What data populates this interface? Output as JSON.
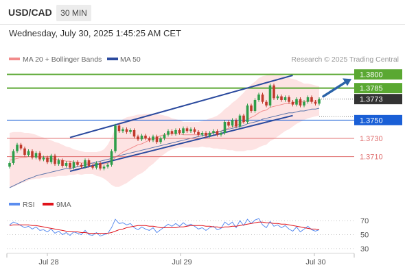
{
  "header": {
    "symbol": "USD/CAD",
    "timeframe": "30 MIN",
    "datetime": "Wednesday, July 30, 2025 1:45:25 AM CET"
  },
  "legend": {
    "ma20": "MA 20 + Bollinger Bands",
    "ma50": "MA 50",
    "credit": "Research © 2025 Trading Central",
    "rsi": "RSI",
    "rsi_ma": "9MA"
  },
  "colors": {
    "resistance": "#5aa832",
    "pivot": "#1a5fd6",
    "support": "#e07070",
    "trendline": "#2b4a9e",
    "arrow": "#2b63a8",
    "bollinger_fill": "#fde3e3",
    "ma20": "#f28b8b",
    "ma50": "#5470a8",
    "candle_up": "#2e9e4a",
    "candle_down": "#c0392b",
    "rsi": "#5b8def",
    "rsi_ma": "#e0131b",
    "last_price_bg": "#333333"
  },
  "chart_data": [
    {
      "type": "candlestick",
      "ylim": [
        1.3664,
        1.3808
      ],
      "x_labels": [
        "Jul 28",
        "Jul 29",
        "Jul 30"
      ],
      "levels": [
        {
          "label": "1.3800",
          "value": 1.38,
          "kind": "resistance"
        },
        {
          "label": "1.3785",
          "value": 1.3785,
          "kind": "resistance"
        },
        {
          "label": "1.3773",
          "value": 1.3773,
          "kind": "last"
        },
        {
          "label": "1.3750",
          "value": 1.375,
          "kind": "pivot"
        },
        {
          "label": "1.3730",
          "value": 1.373,
          "kind": "support"
        },
        {
          "label": "1.3710",
          "value": 1.371,
          "kind": "support"
        }
      ],
      "channel": {
        "upper": [
          {
            "bar": 16,
            "price": 1.3731
          },
          {
            "bar": 75,
            "price": 1.3799
          }
        ],
        "lower": [
          {
            "bar": 16,
            "price": 1.3694
          },
          {
            "bar": 75,
            "price": 1.3755
          }
        ]
      },
      "closes": [
        1.3703,
        1.3716,
        1.3723,
        1.3719,
        1.3712,
        1.3716,
        1.3709,
        1.3714,
        1.3707,
        1.3709,
        1.3704,
        1.3711,
        1.3702,
        1.3706,
        1.37,
        1.3703,
        1.3698,
        1.3704,
        1.3701,
        1.3699,
        1.3706,
        1.37,
        1.3698,
        1.3703,
        1.3697,
        1.3699,
        1.3701,
        1.3716,
        1.3744,
        1.3738,
        1.374,
        1.3737,
        1.3739,
        1.3732,
        1.3729,
        1.3733,
        1.373,
        1.3728,
        1.3732,
        1.3726,
        1.373,
        1.3734,
        1.3738,
        1.3735,
        1.3739,
        1.3736,
        1.3741,
        1.3738,
        1.374,
        1.3737,
        1.3734,
        1.3736,
        1.3733,
        1.3736,
        1.3738,
        1.3734,
        1.3736,
        1.3748,
        1.3744,
        1.375,
        1.3743,
        1.3755,
        1.3748,
        1.3766,
        1.376,
        1.3772,
        1.3778,
        1.377,
        1.3766,
        1.3788,
        1.3774,
        1.3776,
        1.3772,
        1.3775,
        1.377,
        1.3767,
        1.3773,
        1.3766,
        1.377,
        1.3775,
        1.377,
        1.3768,
        1.3773
      ],
      "ma20": [
        1.3706,
        1.3707,
        1.3708,
        1.3709,
        1.3709,
        1.371,
        1.371,
        1.371,
        1.3709,
        1.3709,
        1.3708,
        1.3708,
        1.3707,
        1.3707,
        1.3706,
        1.3705,
        1.3705,
        1.3704,
        1.3704,
        1.3703,
        1.3703,
        1.3703,
        1.3703,
        1.3702,
        1.3702,
        1.3702,
        1.3703,
        1.3705,
        1.3709,
        1.3712,
        1.3715,
        1.3717,
        1.3719,
        1.3721,
        1.3723,
        1.3724,
        1.3726,
        1.3728,
        1.3729,
        1.3731,
        1.3733,
        1.3734,
        1.3735,
        1.3735,
        1.3735,
        1.3735,
        1.3734,
        1.3734,
        1.3734,
        1.3734,
        1.3734,
        1.3735,
        1.3735,
        1.3736,
        1.3736,
        1.3737,
        1.3738,
        1.374,
        1.3741,
        1.3743,
        1.3744,
        1.3746,
        1.3748,
        1.3751,
        1.3753,
        1.3755,
        1.3758,
        1.376,
        1.3761,
        1.3764,
        1.3765,
        1.3766,
        1.3767,
        1.3768,
        1.3768,
        1.3769,
        1.377,
        1.377,
        1.377,
        1.3771,
        1.3771,
        1.3771,
        1.3771
      ],
      "ma50": [
        1.3676,
        1.3678,
        1.368,
        1.3682,
        1.3684,
        1.3686,
        1.3687,
        1.3689,
        1.369,
        1.3691,
        1.3692,
        1.3693,
        1.3694,
        1.3695,
        1.3696,
        1.3697,
        1.3697,
        1.3698,
        1.3699,
        1.37,
        1.3701,
        1.3702,
        1.3703,
        1.3704,
        1.3705,
        1.3706,
        1.3707,
        1.3708,
        1.371,
        1.3711,
        1.3712,
        1.3713,
        1.3714,
        1.3715,
        1.3716,
        1.3717,
        1.3718,
        1.3719,
        1.372,
        1.3721,
        1.3722,
        1.3723,
        1.3724,
        1.3725,
        1.3726,
        1.3727,
        1.3728,
        1.3729,
        1.373,
        1.3731,
        1.3732,
        1.3733,
        1.3734,
        1.3735,
        1.3736,
        1.3737,
        1.3738,
        1.3739,
        1.374,
        1.3741,
        1.3742,
        1.3743,
        1.3744,
        1.3746,
        1.3747,
        1.3748,
        1.3749,
        1.3751,
        1.3752,
        1.3753,
        1.3754,
        1.3755,
        1.3756,
        1.3757,
        1.3758,
        1.3758,
        1.3759,
        1.376,
        1.376,
        1.3761,
        1.3762,
        1.3762,
        1.3763
      ],
      "bb_width": [
        0.003,
        0.003,
        0.0029,
        0.0028,
        0.0027,
        0.0026,
        0.0025,
        0.0024,
        0.0023,
        0.0022,
        0.0021,
        0.002,
        0.0019,
        0.0018,
        0.0017,
        0.0016,
        0.0015,
        0.0014,
        0.0013,
        0.0013,
        0.0012,
        0.0012,
        0.0012,
        0.0013,
        0.0014,
        0.0016,
        0.002,
        0.0026,
        0.0032,
        0.0035,
        0.0036,
        0.0036,
        0.0035,
        0.0034,
        0.0033,
        0.0032,
        0.0031,
        0.0029,
        0.0027,
        0.0025,
        0.0023,
        0.0021,
        0.0019,
        0.0017,
        0.0016,
        0.0015,
        0.0014,
        0.0014,
        0.0014,
        0.0014,
        0.0014,
        0.0014,
        0.0015,
        0.0016,
        0.0017,
        0.0018,
        0.002,
        0.0022,
        0.0024,
        0.0026,
        0.0028,
        0.003,
        0.0032,
        0.0034,
        0.0036,
        0.0037,
        0.0038,
        0.0038,
        0.0038,
        0.0037,
        0.0036,
        0.0034,
        0.0032,
        0.003,
        0.0028,
        0.0026,
        0.0024,
        0.0022,
        0.002,
        0.0019,
        0.0018,
        0.0017,
        0.0016
      ]
    },
    {
      "type": "line",
      "ylim": [
        25,
        80
      ],
      "yticks": [
        70,
        50,
        30
      ],
      "series": [
        {
          "name": "RSI",
          "values": [
            64,
            68,
            66,
            63,
            60,
            62,
            58,
            61,
            56,
            57,
            54,
            58,
            52,
            55,
            50,
            53,
            49,
            54,
            52,
            50,
            56,
            50,
            49,
            53,
            48,
            50,
            52,
            60,
            72,
            66,
            67,
            64,
            66,
            60,
            57,
            61,
            58,
            56,
            60,
            53,
            57,
            61,
            65,
            62,
            66,
            62,
            67,
            63,
            65,
            62,
            58,
            60,
            56,
            60,
            62,
            57,
            59,
            68,
            64,
            68,
            60,
            70,
            63,
            72,
            66,
            71,
            73,
            64,
            60,
            69,
            62,
            64,
            60,
            63,
            58,
            55,
            61,
            54,
            58,
            62,
            57,
            55,
            57
          ]
        },
        {
          "name": "9MA",
          "values": [
            63,
            64,
            64,
            64,
            64,
            64,
            63,
            63,
            62,
            61,
            60,
            59,
            58,
            57,
            56,
            55,
            55,
            54,
            54,
            53,
            53,
            52,
            52,
            52,
            52,
            52,
            52,
            53,
            55,
            57,
            58,
            60,
            61,
            62,
            63,
            63,
            63,
            62,
            62,
            61,
            60,
            60,
            60,
            60,
            60,
            61,
            61,
            62,
            63,
            63,
            63,
            63,
            62,
            62,
            61,
            61,
            60,
            61,
            61,
            62,
            62,
            63,
            64,
            65,
            66,
            67,
            68,
            68,
            67,
            67,
            66,
            66,
            65,
            65,
            64,
            63,
            62,
            61,
            60,
            59,
            58,
            58,
            57
          ]
        }
      ]
    }
  ]
}
